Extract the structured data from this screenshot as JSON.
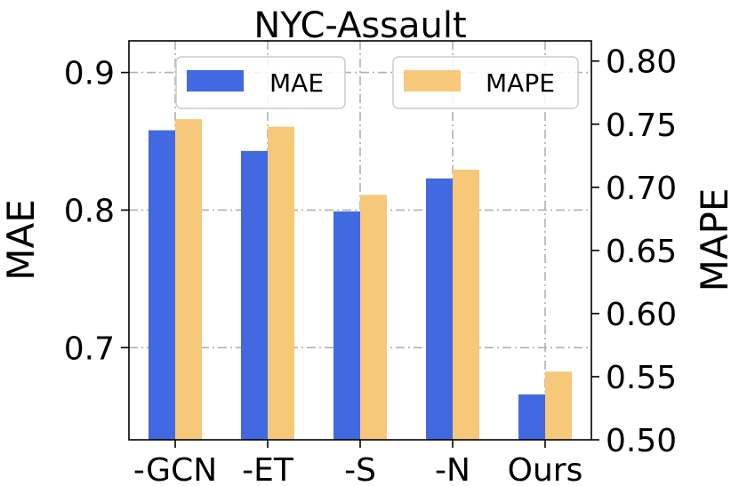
{
  "chart_data": {
    "type": "bar",
    "title": "NYC-Assault",
    "categories": [
      "-GCN",
      "-ET",
      "-S",
      "-N",
      "Ours"
    ],
    "series": [
      {
        "name": "MAE",
        "axis": "left",
        "color": "#4169e1",
        "values": [
          0.858,
          0.843,
          0.799,
          0.823,
          0.666
        ]
      },
      {
        "name": "MAPE",
        "axis": "right",
        "color": "#f8c87a",
        "values": [
          0.754,
          0.748,
          0.694,
          0.714,
          0.554
        ]
      }
    ],
    "ylabel": "MAE",
    "ylabel_right": "MAPE",
    "ylim": [
      0.633,
      0.923
    ],
    "ylim_right": [
      0.5,
      0.816
    ],
    "yticks": [
      0.7,
      0.8,
      0.9
    ],
    "yticks_labels": [
      "0.7",
      "0.8",
      "0.9"
    ],
    "yticks_right": [
      0.5,
      0.55,
      0.6,
      0.65,
      0.7,
      0.75,
      0.8
    ],
    "yticks_right_labels": [
      "0.50",
      "0.55",
      "0.60",
      "0.65",
      "0.70",
      "0.75",
      "0.80"
    ],
    "grid": true,
    "legend_left": "upper-left",
    "legend_right": "upper-right"
  }
}
